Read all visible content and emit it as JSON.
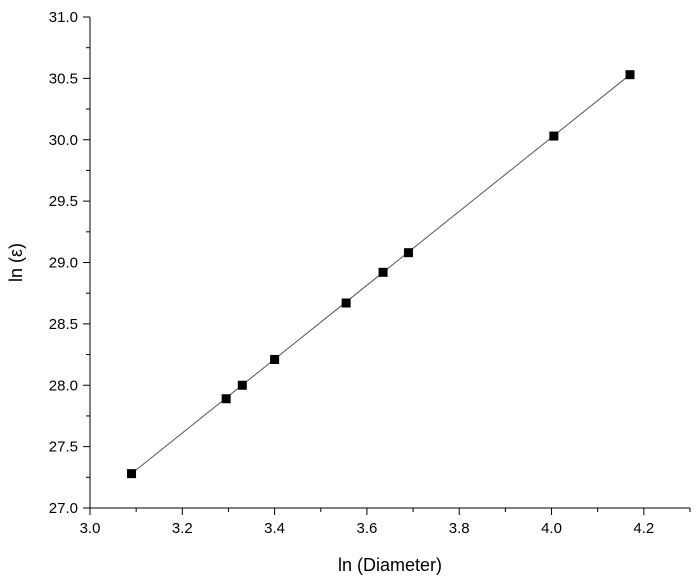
{
  "chart_data": {
    "type": "scatter",
    "title": "",
    "xlabel": "ln (Diameter)",
    "ylabel": "ln (ε)",
    "xlim": [
      3.0,
      4.3
    ],
    "ylim": [
      27.0,
      31.0
    ],
    "x_ticks": [
      3.0,
      3.2,
      3.4,
      3.6,
      3.8,
      4.0,
      4.2
    ],
    "y_ticks": [
      27.0,
      27.5,
      28.0,
      28.5,
      29.0,
      29.5,
      30.0,
      30.5,
      31.0
    ],
    "x_tick_labels": [
      "3.0",
      "3.2",
      "3.4",
      "3.6",
      "3.8",
      "4.0",
      "4.2"
    ],
    "y_tick_labels": [
      "27.0",
      "27.5",
      "28.0",
      "28.5",
      "29.0",
      "29.5",
      "30.0",
      "30.5",
      "31.0"
    ],
    "grid": false,
    "legend": "none",
    "marker": "square",
    "marker_color": "#000000",
    "line_color": "#555555",
    "series": [
      {
        "name": "",
        "points": [
          {
            "x": 3.09,
            "y": 27.28
          },
          {
            "x": 3.295,
            "y": 27.89
          },
          {
            "x": 3.33,
            "y": 28.0
          },
          {
            "x": 3.4,
            "y": 28.21
          },
          {
            "x": 3.555,
            "y": 28.67
          },
          {
            "x": 3.635,
            "y": 28.92
          },
          {
            "x": 3.69,
            "y": 29.08
          },
          {
            "x": 4.005,
            "y": 30.03
          },
          {
            "x": 4.17,
            "y": 30.53
          }
        ]
      }
    ],
    "fit_line": {
      "from": {
        "x": 3.09,
        "y": 27.28
      },
      "to": {
        "x": 4.17,
        "y": 30.53
      }
    }
  }
}
